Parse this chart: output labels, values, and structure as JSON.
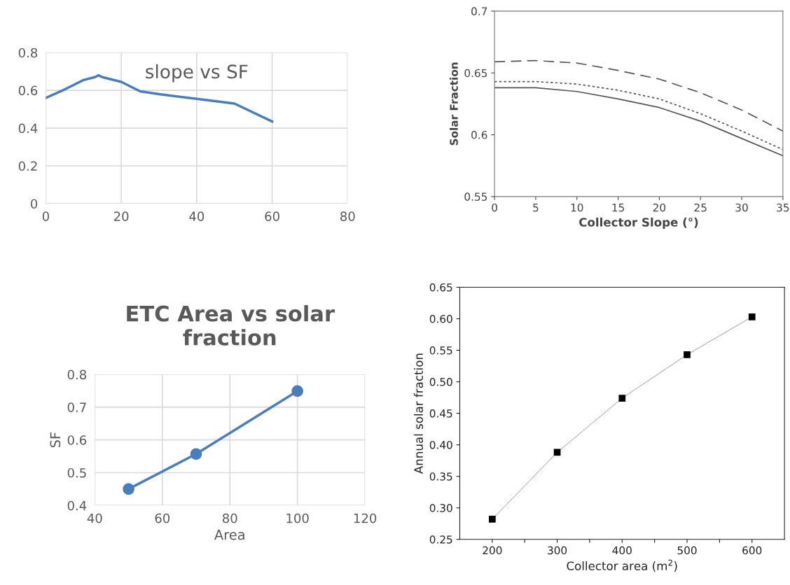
{
  "chart_data": [
    {
      "type": "line",
      "title": "slope vs SF",
      "x": [
        0,
        5,
        10,
        13,
        14,
        15,
        20,
        25,
        30,
        40,
        50,
        60
      ],
      "series": [
        {
          "color": "#4a7ebb",
          "values": [
            0.56,
            0.605,
            0.655,
            0.67,
            0.68,
            0.67,
            0.645,
            0.595,
            0.58,
            0.555,
            0.53,
            0.435
          ]
        }
      ],
      "xlim": [
        0,
        80
      ],
      "xticks": [
        0,
        20,
        40,
        60,
        80
      ],
      "ylim": [
        0,
        0.8
      ],
      "yticks": [
        0,
        0.2,
        0.4,
        0.6,
        0.8
      ],
      "grid": true,
      "marker": "none",
      "line_style": "solid"
    },
    {
      "type": "line",
      "xlabel": "Collector Slope (°)",
      "ylabel": "Solar Fraction",
      "x": [
        0,
        5,
        10,
        15,
        20,
        25,
        30,
        35
      ],
      "series": [
        {
          "color": "#555555",
          "line_style": "dashed",
          "values": [
            0.659,
            0.66,
            0.658,
            0.652,
            0.645,
            0.634,
            0.62,
            0.603
          ]
        },
        {
          "color": "#555555",
          "line_style": "dotted",
          "values": [
            0.643,
            0.643,
            0.641,
            0.636,
            0.629,
            0.617,
            0.603,
            0.588
          ]
        },
        {
          "color": "#555555",
          "line_style": "solid",
          "values": [
            0.638,
            0.638,
            0.635,
            0.629,
            0.622,
            0.611,
            0.597,
            0.583
          ]
        }
      ],
      "xlim": [
        0,
        35
      ],
      "xticks": [
        0,
        5,
        10,
        15,
        20,
        25,
        30,
        35
      ],
      "ylim": [
        0.55,
        0.7
      ],
      "yticks": [
        0.55,
        0.6,
        0.65,
        0.7
      ],
      "grid": false,
      "marker": "none"
    },
    {
      "type": "line",
      "title": "ETC Area vs solar\nfraction",
      "xlabel": "Area",
      "ylabel": "SF",
      "x": [
        50,
        70,
        100
      ],
      "series": [
        {
          "color": "#4a7ebb",
          "values": [
            0.45,
            0.557,
            0.749
          ]
        }
      ],
      "xlim": [
        40,
        120
      ],
      "xticks": [
        40,
        60,
        80,
        100,
        120
      ],
      "ylim": [
        0.4,
        0.8
      ],
      "yticks": [
        0.4,
        0.5,
        0.6,
        0.7,
        0.8
      ],
      "grid": true,
      "marker": "circle",
      "line_style": "solid"
    },
    {
      "type": "line",
      "xlabel": "Collector area (m$^{2}$)",
      "ylabel": "Annual solar fraction",
      "x": [
        200,
        300,
        400,
        500,
        600
      ],
      "series": [
        {
          "color": "#000000",
          "values": [
            0.282,
            0.388,
            0.474,
            0.543,
            0.603
          ]
        }
      ],
      "xlim": [
        150,
        650
      ],
      "xticks": [
        200,
        {
          "value": 250,
          "label": null
        },
        300,
        {
          "value": 350,
          "label": null
        },
        400,
        {
          "value": 450,
          "label": null
        },
        500,
        {
          "value": 550,
          "label": null
        },
        600
      ],
      "ylim": [
        0.25,
        0.65
      ],
      "yticks": [
        {
          "value": 0.25,
          "label": "0.25"
        },
        {
          "value": 0.3,
          "label": "0.30"
        },
        {
          "value": 0.35,
          "label": "0.35"
        },
        {
          "value": 0.4,
          "label": "0.40"
        },
        {
          "value": 0.45,
          "label": "0.45"
        },
        {
          "value": 0.5,
          "label": "0.50"
        },
        {
          "value": 0.55,
          "label": "0.55"
        },
        {
          "value": 0.6,
          "label": "0.60"
        },
        {
          "value": 0.65,
          "label": "0.65"
        }
      ],
      "grid": false,
      "marker": "square",
      "line_style": "solid"
    }
  ]
}
